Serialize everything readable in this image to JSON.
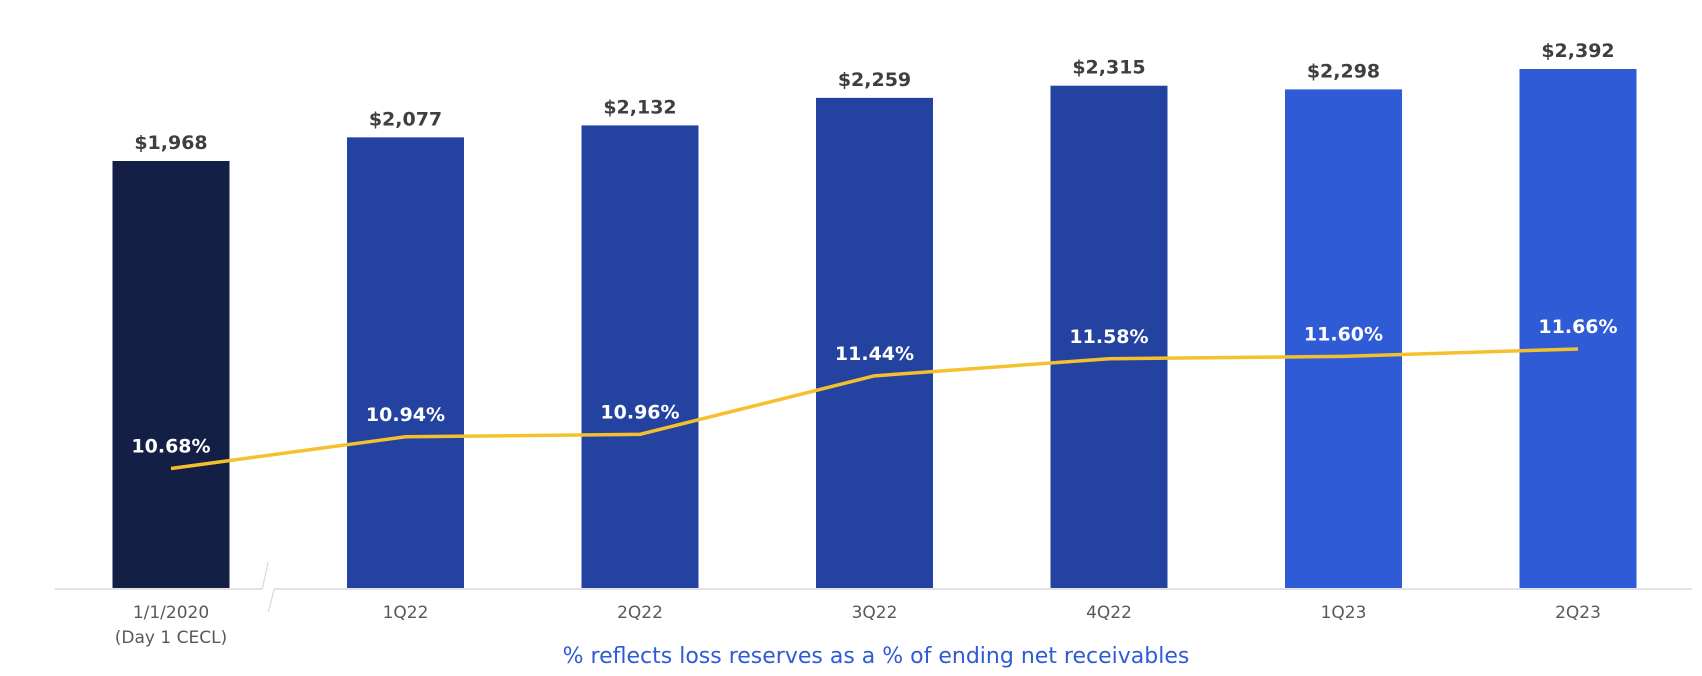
{
  "chart_data": {
    "type": "bar",
    "categories": [
      "1/1/2020",
      "1Q22",
      "2Q22",
      "3Q22",
      "4Q22",
      "1Q23",
      "2Q23"
    ],
    "category_sublabels": [
      "(Day 1 CECL)",
      "",
      "",
      "",
      "",
      "",
      ""
    ],
    "series": [
      {
        "kind": "bar",
        "values": [
          1968,
          2077,
          2132,
          2259,
          2315,
          2298,
          2392
        ],
        "value_labels": [
          "$1,968",
          "$2,077",
          "$2,132",
          "$2,259",
          "$2,315",
          "$2,298",
          "$2,392"
        ],
        "colors": [
          "#131f45",
          "#2443a1",
          "#2443a1",
          "#2443a1",
          "#2443a1",
          "#2f5bd6",
          "#2f5bd6"
        ]
      },
      {
        "kind": "line",
        "values": [
          10.68,
          10.94,
          10.96,
          11.44,
          11.58,
          11.6,
          11.66
        ],
        "value_labels": [
          "10.68%",
          "10.94%",
          "10.96%",
          "11.44%",
          "11.58%",
          "11.60%",
          "11.66%"
        ],
        "color": "#f5c02e"
      }
    ],
    "axis_break_after": "1/1/2020",
    "ylim": [
      0,
      2392
    ],
    "line_ylim": [
      9.7,
      11.66
    ],
    "grid": false,
    "footnote": "% reflects loss reserves as a % of ending net receivables",
    "axis_color": "#d9d9d9"
  }
}
